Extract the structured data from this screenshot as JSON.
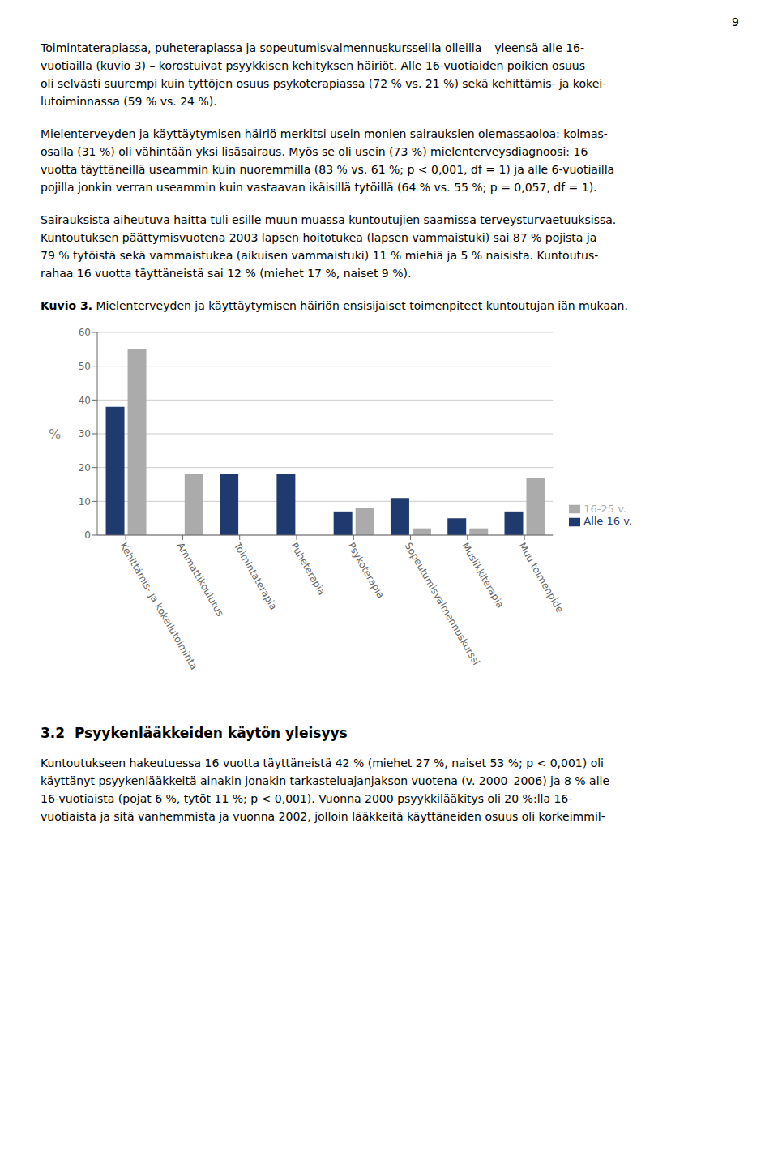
{
  "chart_data": {
    "type": "bar",
    "title": "Kuvio 3.",
    "subtitle": " Mielenterveyden ja käyttäytymisen häiriön ensisijaiset toimenpiteet kuntoutujan iän mukaan.",
    "ylabel": "%",
    "categories": [
      "Kehittämis- ja kokeilutoiminta",
      "Ammattikoulutus",
      "Toimintaterapia",
      "Puheterapia",
      "Psykoterapia",
      "Sopeutumisvalmennuskurssi",
      "Musiikkiterapia",
      "Muu toimenpide"
    ],
    "series": [
      {
        "name": "Alle 16 v.",
        "color": "#1F3A6E",
        "values": [
          38,
          0,
          18,
          18,
          7,
          11,
          5,
          7
        ]
      },
      {
        "name": "16-25 v.",
        "color": "#ABABAB",
        "values": [
          55,
          18,
          0,
          0,
          8,
          2,
          2,
          17
        ]
      }
    ],
    "ylim": [
      0,
      60
    ],
    "yticks": [
      0,
      10,
      20,
      30,
      40,
      50,
      60
    ],
    "grid": true,
    "legend": "right",
    "annotations": [
      [
        "9"
      ],
      [
        "Toimintaterapiassa, puheterapiassa ja sopeutumisvalmennuskursseilla olleilla – yleensä alle 16-",
        "vuotiailla (kuvio 3) – korostuivat psyykkisen kehityksen häiriöt. Alle 16-vuotiaiden poikien osuus",
        "oli selvästi suurempi kuin tyttöjen osuus psykoterapiassa (72 % vs. 21 %) sekä kehittämis- ja kokei-",
        "lutoiminnassa (59 % vs. 24 %)."
      ],
      [
        "Mielenterveyden ja käyttäytymisen häiriö merkitsi usein monien sairauksien olemassaoloa: kolmas-",
        "osalla (31 %) oli vähintään yksi lisäsairaus. Myös se oli usein (73 %) mielenterveysdiagnoosi: 16",
        "vuotta täyttäneillä useammin kuin nuoremmilla (83 % vs. 61 %; p < 0,001, df = 1) ja alle 6-vuotiailla",
        "pojilla jonkin verran useammin kuin vastaavan ikäisillä tytöillä (64 % vs. 55 %; p = 0,057, df = 1)."
      ],
      [
        "Sairauksista aiheutuva haitta tuli esille muun muassa kuntoutujien saamissa terveysturvaetuuksissa.",
        "Kuntoutuksen päättymisvuotena 2003 lapsen hoitotukea (lapsen vammaistuki) sai 87 % pojista ja",
        "79 % tytöistä sekä vammaistukea (aikuisen vammaistuki) 11 % miehiä ja 5 % naisista. Kuntoutus-",
        "rahaa 16 vuotta täyttäneistä sai 12 % (miehet 17 %, naiset 9 %)."
      ],
      [
        "3.2  Psyykenlääkkeiden käytön yleisyys"
      ],
      [
        "Kuntoutukseen hakeutuessa 16 vuotta täyttäneistä 42 % (miehet 27 %, naiset 53 %; p < 0,001) oli",
        "käyttänyt psyykenlääkkeitä ainakin jonakin tarkasteluajanjakson vuotena (v. 2000–2006) ja 8 % alle",
        "16-vuotiaista (pojat 6 %, tytöt 11 %; p < 0,001). Vuonna 2000 psyykkilääkitys oli 20 %:lla 16-",
        "vuotiaista ja sitä vanhemmista ja vuonna 2002, jolloin lääkkeitä käyttäneiden osuus oli korkeimmil-"
      ]
    ]
  }
}
